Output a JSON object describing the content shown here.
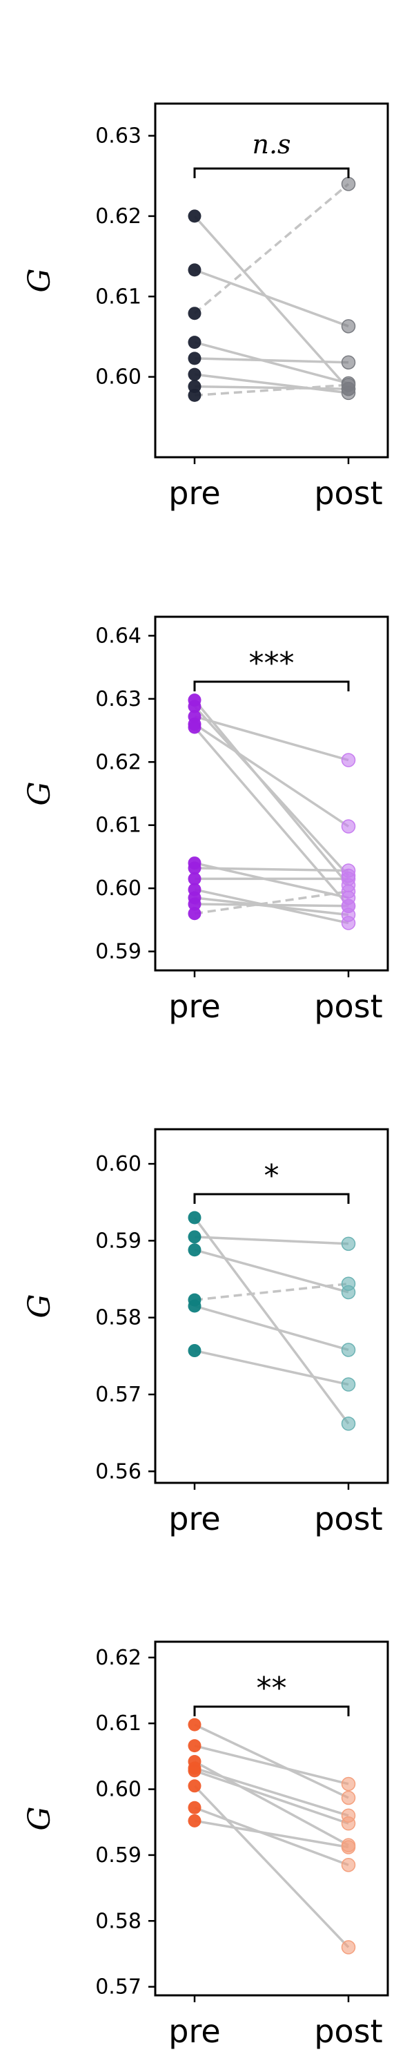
{
  "chart_data": [
    {
      "type": "scatter",
      "ylabel": "G",
      "ylim": [
        0.59,
        0.634
      ],
      "yticks": [
        "0.60",
        "0.61",
        "0.62",
        "0.63"
      ],
      "categories": [
        "pre",
        "post"
      ],
      "significance": "n.s",
      "pre_color": "#1c2233",
      "post_color": "#7a7c82",
      "pairs": [
        {
          "pre": 0.62,
          "post": 0.5985,
          "style": "solid"
        },
        {
          "pre": 0.6133,
          "post": 0.6063,
          "style": "solid"
        },
        {
          "pre": 0.6079,
          "post": 0.624,
          "style": "dashed"
        },
        {
          "pre": 0.6043,
          "post": 0.5992,
          "style": "solid"
        },
        {
          "pre": 0.6023,
          "post": 0.6018,
          "style": "solid"
        },
        {
          "pre": 0.6003,
          "post": 0.598,
          "style": "solid"
        },
        {
          "pre": 0.5988,
          "post": 0.5985,
          "style": "solid"
        },
        {
          "pre": 0.5977,
          "post": 0.599,
          "style": "dashed"
        }
      ]
    },
    {
      "type": "scatter",
      "ylabel": "G",
      "ylim": [
        0.587,
        0.643
      ],
      "yticks": [
        "0.59",
        "0.60",
        "0.61",
        "0.62",
        "0.63",
        "0.64"
      ],
      "categories": [
        "pre",
        "post"
      ],
      "significance": "***",
      "pre_color": "#9b1fe0",
      "post_color": "#c77df0",
      "pairs": [
        {
          "pre": 0.6298,
          "post": 0.6005,
          "style": "solid"
        },
        {
          "pre": 0.6288,
          "post": 0.602,
          "style": "solid"
        },
        {
          "pre": 0.6272,
          "post": 0.6203,
          "style": "solid"
        },
        {
          "pre": 0.626,
          "post": 0.6098,
          "style": "solid"
        },
        {
          "pre": 0.6255,
          "post": 0.5972,
          "style": "solid"
        },
        {
          "pre": 0.604,
          "post": 0.5985,
          "style": "solid"
        },
        {
          "pre": 0.6032,
          "post": 0.6028,
          "style": "solid"
        },
        {
          "pre": 0.6015,
          "post": 0.6015,
          "style": "solid"
        },
        {
          "pre": 0.5998,
          "post": 0.5945,
          "style": "solid"
        },
        {
          "pre": 0.5985,
          "post": 0.5958,
          "style": "solid"
        },
        {
          "pre": 0.5975,
          "post": 0.5972,
          "style": "solid"
        },
        {
          "pre": 0.596,
          "post": 0.5995,
          "style": "dashed"
        }
      ]
    },
    {
      "type": "scatter",
      "ylabel": "G",
      "ylim": [
        0.5585,
        0.6045
      ],
      "yticks": [
        "0.56",
        "0.57",
        "0.58",
        "0.59",
        "0.60"
      ],
      "categories": [
        "pre",
        "post"
      ],
      "significance": "*",
      "pre_color": "#0f7f80",
      "post_color": "#6cb3b4",
      "pairs": [
        {
          "pre": 0.593,
          "post": 0.5662,
          "style": "solid"
        },
        {
          "pre": 0.5905,
          "post": 0.5896,
          "style": "solid"
        },
        {
          "pre": 0.5888,
          "post": 0.5833,
          "style": "solid"
        },
        {
          "pre": 0.5823,
          "post": 0.5844,
          "style": "dashed"
        },
        {
          "pre": 0.5815,
          "post": 0.5758,
          "style": "solid"
        },
        {
          "pre": 0.5757,
          "post": 0.5713,
          "style": "solid"
        }
      ]
    },
    {
      "type": "scatter",
      "ylabel": "G",
      "ylim": [
        0.5687,
        0.6224
      ],
      "yticks": [
        "0.57",
        "0.58",
        "0.59",
        "0.60",
        "0.61",
        "0.62"
      ],
      "categories": [
        "pre",
        "post"
      ],
      "significance": "**",
      "pre_color": "#f05a28",
      "post_color": "#f4a07e",
      "pairs": [
        {
          "pre": 0.6098,
          "post": 0.5987,
          "style": "solid"
        },
        {
          "pre": 0.6066,
          "post": 0.6008,
          "style": "solid"
        },
        {
          "pre": 0.6042,
          "post": 0.5915,
          "style": "solid"
        },
        {
          "pre": 0.6032,
          "post": 0.596,
          "style": "solid"
        },
        {
          "pre": 0.6028,
          "post": 0.5948,
          "style": "solid"
        },
        {
          "pre": 0.6005,
          "post": 0.576,
          "style": "solid"
        },
        {
          "pre": 0.5972,
          "post": 0.5885,
          "style": "solid"
        },
        {
          "pre": 0.5952,
          "post": 0.5912,
          "style": "solid"
        }
      ]
    }
  ]
}
